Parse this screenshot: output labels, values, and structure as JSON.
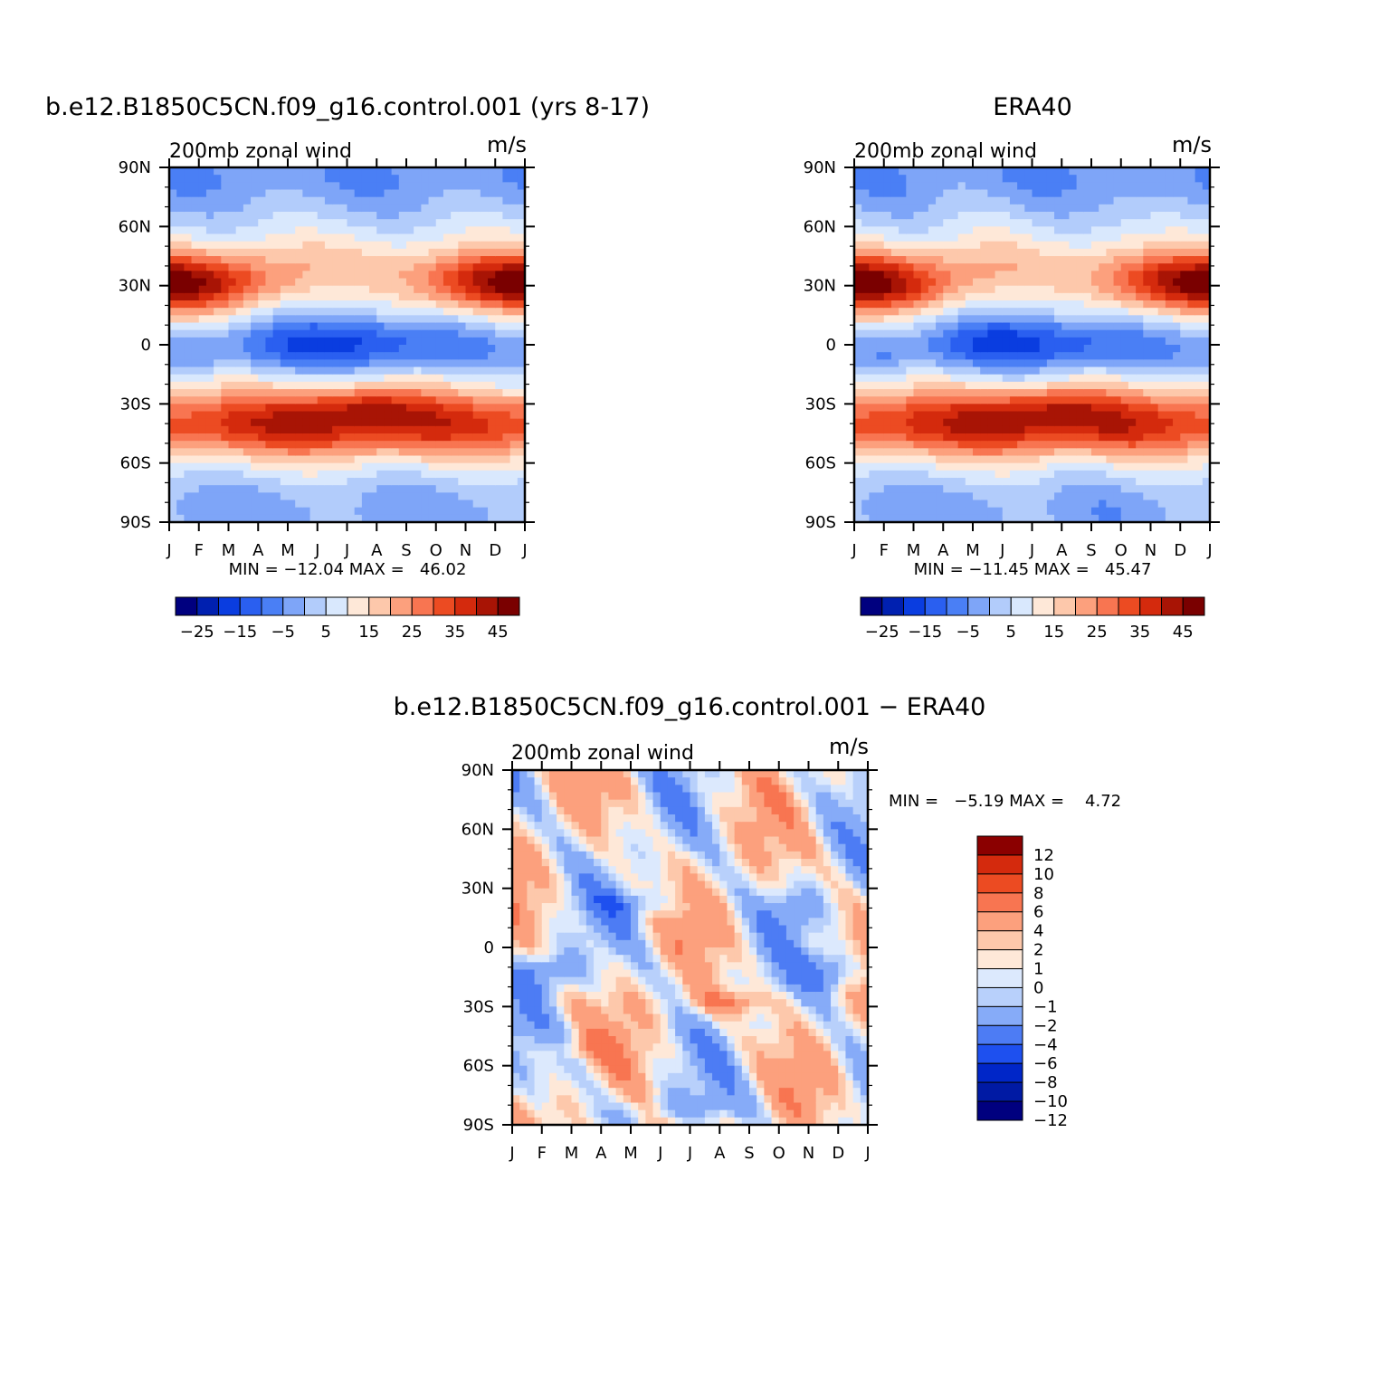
{
  "palettes": {
    "full": [
      "#00007f",
      "#0020b0",
      "#0a3de0",
      "#2a5ff0",
      "#4a7ff5",
      "#7ea5f8",
      "#b2ccfb",
      "#d9e8fd",
      "#fee8d8",
      "#fdc8ab",
      "#fca07d",
      "#f87551",
      "#ec4b22",
      "#d42a0d",
      "#a81405",
      "#7a0000"
    ],
    "diff": [
      "#00007f",
      "#001aa4",
      "#0026c8",
      "#1e50ef",
      "#4d7cf4",
      "#86abf8",
      "#b8d0fb",
      "#dce9fd",
      "#fee8d8",
      "#fdc8ab",
      "#fca07d",
      "#f87551",
      "#ec4b22",
      "#d42a0d",
      "#8b0000"
    ]
  },
  "chart_data": [
    {
      "type": "heatmap",
      "title": "b.e12.B1850C5CN.f09_g16.control.001 (yrs 8-17)",
      "left_label": "200mb zonal wind",
      "right_label": "m/s",
      "x_ticks": [
        "J",
        "F",
        "M",
        "A",
        "M",
        "J",
        "J",
        "A",
        "S",
        "O",
        "N",
        "D",
        "J"
      ],
      "y_ticks": [
        "90N",
        "60N",
        "30N",
        "0",
        "30S",
        "60S",
        "90S"
      ],
      "stats_text": "MIN = −12.04 MAX =   46.02",
      "min": -12.04,
      "max": 46.02,
      "colorbar_labels": [
        "−25",
        "−15",
        "−5",
        "5",
        "15",
        "25",
        "35",
        "45"
      ],
      "levels": [
        -30,
        -25,
        -20,
        -15,
        -10,
        -5,
        0,
        5,
        10,
        15,
        20,
        25,
        30,
        35,
        40,
        45,
        50
      ],
      "variant": "model"
    },
    {
      "type": "heatmap",
      "title": "ERA40",
      "left_label": "200mb zonal wind",
      "right_label": "m/s",
      "x_ticks": [
        "J",
        "F",
        "M",
        "A",
        "M",
        "J",
        "J",
        "A",
        "S",
        "O",
        "N",
        "D",
        "J"
      ],
      "y_ticks": [
        "90N",
        "60N",
        "30N",
        "0",
        "30S",
        "60S",
        "90S"
      ],
      "stats_text": "MIN = −11.45 MAX =   45.47",
      "min": -11.45,
      "max": 45.47,
      "colorbar_labels": [
        "−25",
        "−15",
        "−5",
        "5",
        "15",
        "25",
        "35",
        "45"
      ],
      "levels": [
        -30,
        -25,
        -20,
        -15,
        -10,
        -5,
        0,
        5,
        10,
        15,
        20,
        25,
        30,
        35,
        40,
        45,
        50
      ],
      "variant": "obs"
    },
    {
      "type": "heatmap",
      "title": "b.e12.B1850C5CN.f09_g16.control.001 − ERA40",
      "left_label": "200mb zonal wind",
      "right_label": "m/s",
      "x_ticks": [
        "J",
        "F",
        "M",
        "A",
        "M",
        "J",
        "J",
        "A",
        "S",
        "O",
        "N",
        "D",
        "J"
      ],
      "y_ticks": [
        "90N",
        "60N",
        "30N",
        "0",
        "30S",
        "60S",
        "90S"
      ],
      "stats_text": "MIN =   −5.19 MAX =    4.72",
      "min": -5.19,
      "max": 4.72,
      "colorbar_labels": [
        "12",
        "10",
        "8",
        "6",
        "4",
        "2",
        "1",
        "0",
        "−1",
        "−2",
        "−4",
        "−6",
        "−8",
        "−10",
        "−12"
      ],
      "levels": [
        -14,
        -12,
        -10,
        -8,
        -6,
        -4,
        -2,
        -1,
        0,
        1,
        2,
        4,
        6,
        8,
        10,
        12,
        14
      ],
      "variant": "diff"
    }
  ]
}
